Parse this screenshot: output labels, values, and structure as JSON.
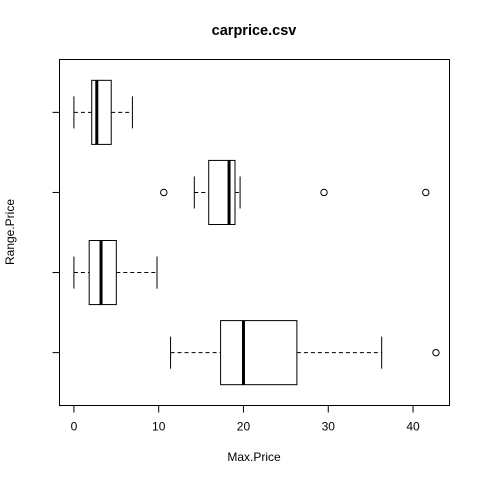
{
  "chart_data": {
    "type": "boxplot",
    "orientation": "horizontal",
    "title": "carprice.csv",
    "xlabel": "Max.Price",
    "ylabel": "Range.Price",
    "xlim": [
      -1.7,
      44.3
    ],
    "x_ticks": [
      0,
      10,
      20,
      30,
      40
    ],
    "y_tick_labels_shown": false,
    "boxes": [
      {
        "whisker_low": 11.4,
        "q1": 17.3,
        "median": 20.0,
        "q3": 26.3,
        "whisker_high": 36.3,
        "outliers": [
          42.7
        ]
      },
      {
        "whisker_low": 0.0,
        "q1": 1.8,
        "median": 3.2,
        "q3": 5.0,
        "whisker_high": 9.8,
        "outliers": []
      },
      {
        "whisker_low": 14.2,
        "q1": 15.9,
        "median": 18.3,
        "q3": 19.0,
        "whisker_high": 19.6,
        "outliers": [
          10.6,
          29.5,
          41.5
        ]
      },
      {
        "whisker_low": 0.0,
        "q1": 2.1,
        "median": 2.7,
        "q3": 4.4,
        "whisker_high": 6.9,
        "outliers": []
      }
    ]
  }
}
